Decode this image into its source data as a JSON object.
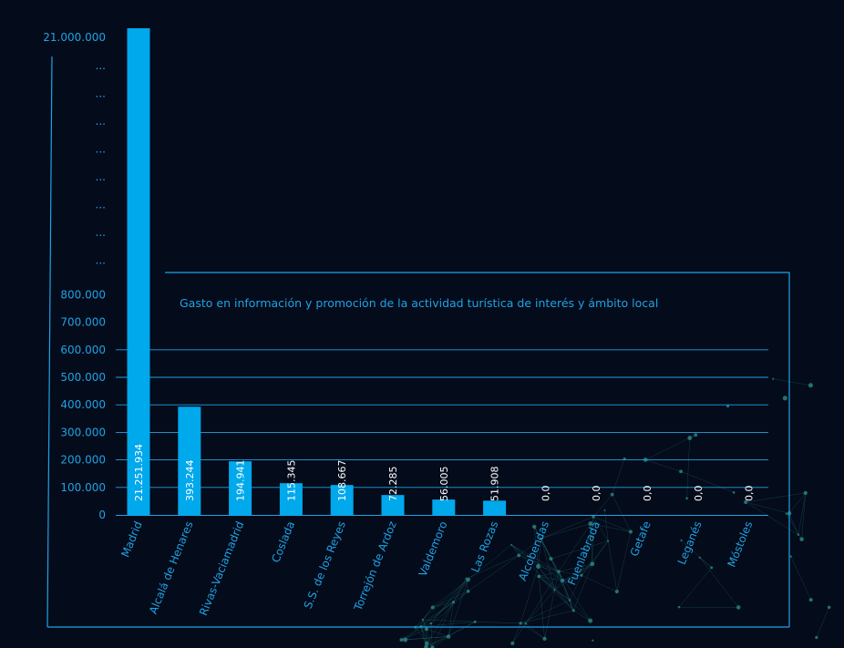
{
  "chart_data": {
    "type": "bar",
    "title": "Gasto en información y promoción de la actividad turística de interés y ámbito local",
    "categories": [
      "Madrid",
      "Alcalá de Henares",
      "Rivas-Vaciamadrid",
      "Coslada",
      "S.S. de los Reyes",
      "Torrejón de Ardoz",
      "Valdemoro",
      "Las Rozas",
      "Alcobendas",
      "Fuenlabrada",
      "Getafe",
      "Leganés",
      "Móstoles"
    ],
    "values": [
      21251934,
      393244,
      194941,
      115345,
      108667,
      72285,
      56005,
      51908,
      0,
      0,
      0,
      0,
      0
    ],
    "value_labels": [
      "21.251.934",
      "393.244",
      "194.941",
      "115.345",
      "108.667",
      "72.285",
      "56.005",
      "51.908",
      "0,0",
      "0,0",
      "0,0",
      "0,0",
      "0,0"
    ],
    "y_ticks": [
      "0",
      "100.000",
      "200.000",
      "300.000",
      "400.000",
      "500.000",
      "600.000",
      "700.000",
      "800.000"
    ],
    "y_break_label": "...",
    "y_top_label": "21.000.000",
    "ylim": [
      0,
      800000
    ],
    "y_axis_break": true,
    "colors": {
      "bar": "#00a8ec",
      "text": "#1fa3e6",
      "value_text": "#ffffff",
      "background": "#040b1a",
      "network": "#2a8a8a"
    }
  }
}
